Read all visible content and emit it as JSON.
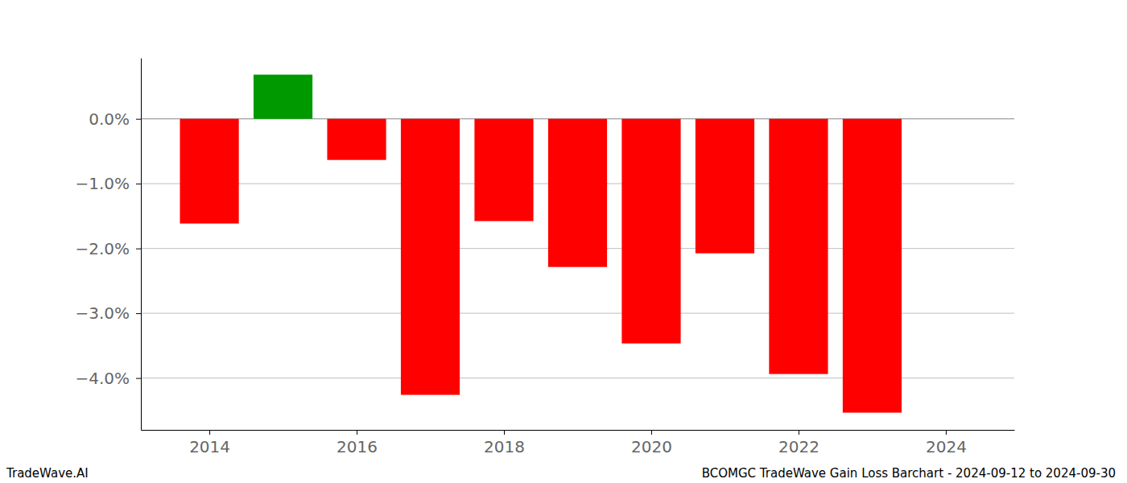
{
  "chart_data": {
    "type": "bar",
    "title": "BCOMGC TradeWave Gain Loss Barchart - 2024-09-12 to 2024-09-30",
    "annotations": [
      "TradeWave.AI"
    ],
    "x": [
      2014,
      2015,
      2016,
      2017,
      2018,
      2019,
      2020,
      2021,
      2022,
      2023
    ],
    "values": [
      -1.615,
      0.683,
      -0.634,
      -4.26,
      -1.578,
      -2.286,
      -3.466,
      -2.075,
      -3.938,
      -4.534
    ],
    "colors": [
      "#ff0000",
      "#009900",
      "#ff0000",
      "#ff0000",
      "#ff0000",
      "#ff0000",
      "#ff0000",
      "#ff0000",
      "#ff0000",
      "#ff0000"
    ],
    "xlim": [
      2013.07,
      2024.93
    ],
    "xticks": [
      2014,
      2016,
      2018,
      2020,
      2022,
      2024
    ],
    "ylim": [
      -4.8,
      0.94
    ],
    "yticks": [
      {
        "value": 0,
        "label": "0.0%"
      },
      {
        "value": -1,
        "label": "−1.0%"
      },
      {
        "value": -2,
        "label": "−2.0%"
      },
      {
        "value": -3,
        "label": "−3.0%"
      },
      {
        "value": -4,
        "label": "−4.0%"
      }
    ],
    "grid": true
  }
}
